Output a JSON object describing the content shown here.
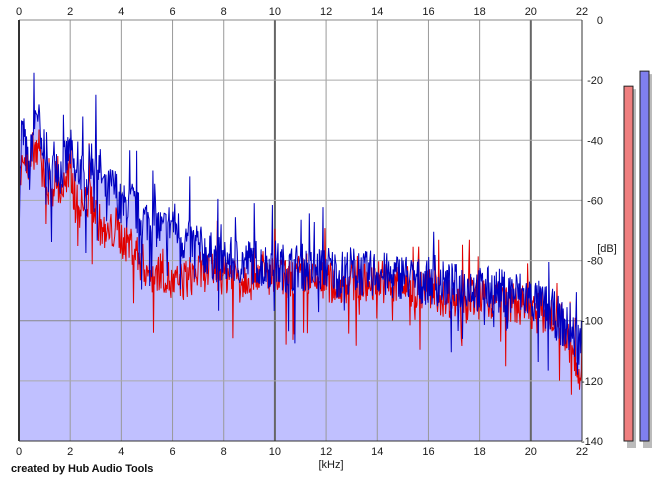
{
  "credit": "created by Hub Audio Tools",
  "chart_data": {
    "type": "line",
    "xlabel": "[kHz]",
    "ylabel": "[dB]",
    "xlim": [
      0,
      22
    ],
    "ylim": [
      -140,
      0
    ],
    "x_ticks": [
      0,
      2,
      4,
      6,
      8,
      10,
      12,
      14,
      16,
      18,
      20,
      22
    ],
    "y_ticks": [
      0,
      -20,
      -40,
      -60,
      -80,
      -100,
      -120,
      -140
    ],
    "grid": true,
    "series": [
      {
        "color": "#0000c0",
        "fill": "#c0c0ff",
        "x": [
          0.0,
          0.1,
          0.2,
          0.3,
          0.4,
          0.5,
          0.6,
          0.7,
          0.8,
          0.9,
          1.0,
          1.2,
          1.4,
          1.6,
          1.8,
          2.0,
          2.2,
          2.4,
          2.6,
          2.8,
          3.0,
          3.2,
          3.4,
          3.6,
          3.8,
          4.0,
          4.4,
          4.8,
          5.2,
          5.6,
          6.0,
          6.4,
          6.8,
          7.2,
          7.6,
          8.0,
          8.4,
          8.8,
          9.2,
          9.6,
          10.0,
          10.5,
          11.0,
          11.5,
          12.0,
          12.5,
          13.0,
          13.5,
          14.0,
          14.5,
          15.0,
          15.5,
          16.0,
          16.5,
          17.0,
          17.5,
          18.0,
          18.5,
          19.0,
          19.5,
          20.0,
          20.4,
          20.8,
          21.2,
          21.6,
          21.9,
          22.0
        ],
        "values": [
          -68,
          -36,
          -40,
          -45,
          -52,
          -40,
          -34,
          -28,
          -35,
          -48,
          -38,
          -55,
          -44,
          -50,
          -47,
          -42,
          -52,
          -48,
          -56,
          -45,
          -46,
          -50,
          -58,
          -55,
          -56,
          -62,
          -60,
          -66,
          -65,
          -70,
          -66,
          -72,
          -74,
          -76,
          -78,
          -80,
          -79,
          -80,
          -79,
          -81,
          -80,
          -82,
          -81,
          -83,
          -81,
          -84,
          -82,
          -84,
          -83,
          -85,
          -84,
          -86,
          -86,
          -87,
          -88,
          -87,
          -89,
          -89,
          -90,
          -90,
          -92,
          -94,
          -96,
          -100,
          -104,
          -106,
          -105
        ]
      },
      {
        "color": "#e00000",
        "x": [
          0.0,
          0.1,
          0.2,
          0.3,
          0.4,
          0.5,
          0.6,
          0.7,
          0.8,
          0.9,
          1.0,
          1.2,
          1.4,
          1.6,
          1.8,
          2.0,
          2.2,
          2.4,
          2.6,
          2.8,
          3.0,
          3.2,
          3.4,
          3.6,
          3.8,
          4.0,
          4.4,
          4.8,
          5.2,
          5.6,
          6.0,
          6.4,
          6.8,
          7.2,
          7.6,
          8.0,
          8.4,
          8.8,
          9.2,
          9.6,
          10.0,
          10.5,
          11.0,
          11.5,
          12.0,
          12.5,
          13.0,
          13.5,
          14.0,
          14.5,
          15.0,
          15.5,
          16.0,
          16.5,
          17.0,
          17.5,
          18.0,
          18.5,
          19.0,
          19.5,
          20.0,
          20.4,
          20.8,
          21.2,
          21.6,
          21.9,
          22.0
        ],
        "values": [
          -62,
          -42,
          -44,
          -46,
          -54,
          -44,
          -42,
          -45,
          -42,
          -52,
          -50,
          -58,
          -52,
          -56,
          -55,
          -50,
          -60,
          -62,
          -60,
          -58,
          -64,
          -68,
          -72,
          -70,
          -68,
          -72,
          -74,
          -80,
          -84,
          -82,
          -88,
          -86,
          -84,
          -83,
          -82,
          -84,
          -83,
          -85,
          -82,
          -84,
          -85,
          -86,
          -84,
          -87,
          -86,
          -88,
          -86,
          -87,
          -85,
          -88,
          -87,
          -90,
          -88,
          -91,
          -92,
          -90,
          -93,
          -92,
          -93,
          -94,
          -95,
          -96,
          -98,
          -100,
          -110,
          -120,
          -112
        ]
      }
    ]
  },
  "meters": [
    {
      "color": "#ef7f7f",
      "level_db": -22
    },
    {
      "color": "#7f7fef",
      "level_db": -17
    }
  ]
}
